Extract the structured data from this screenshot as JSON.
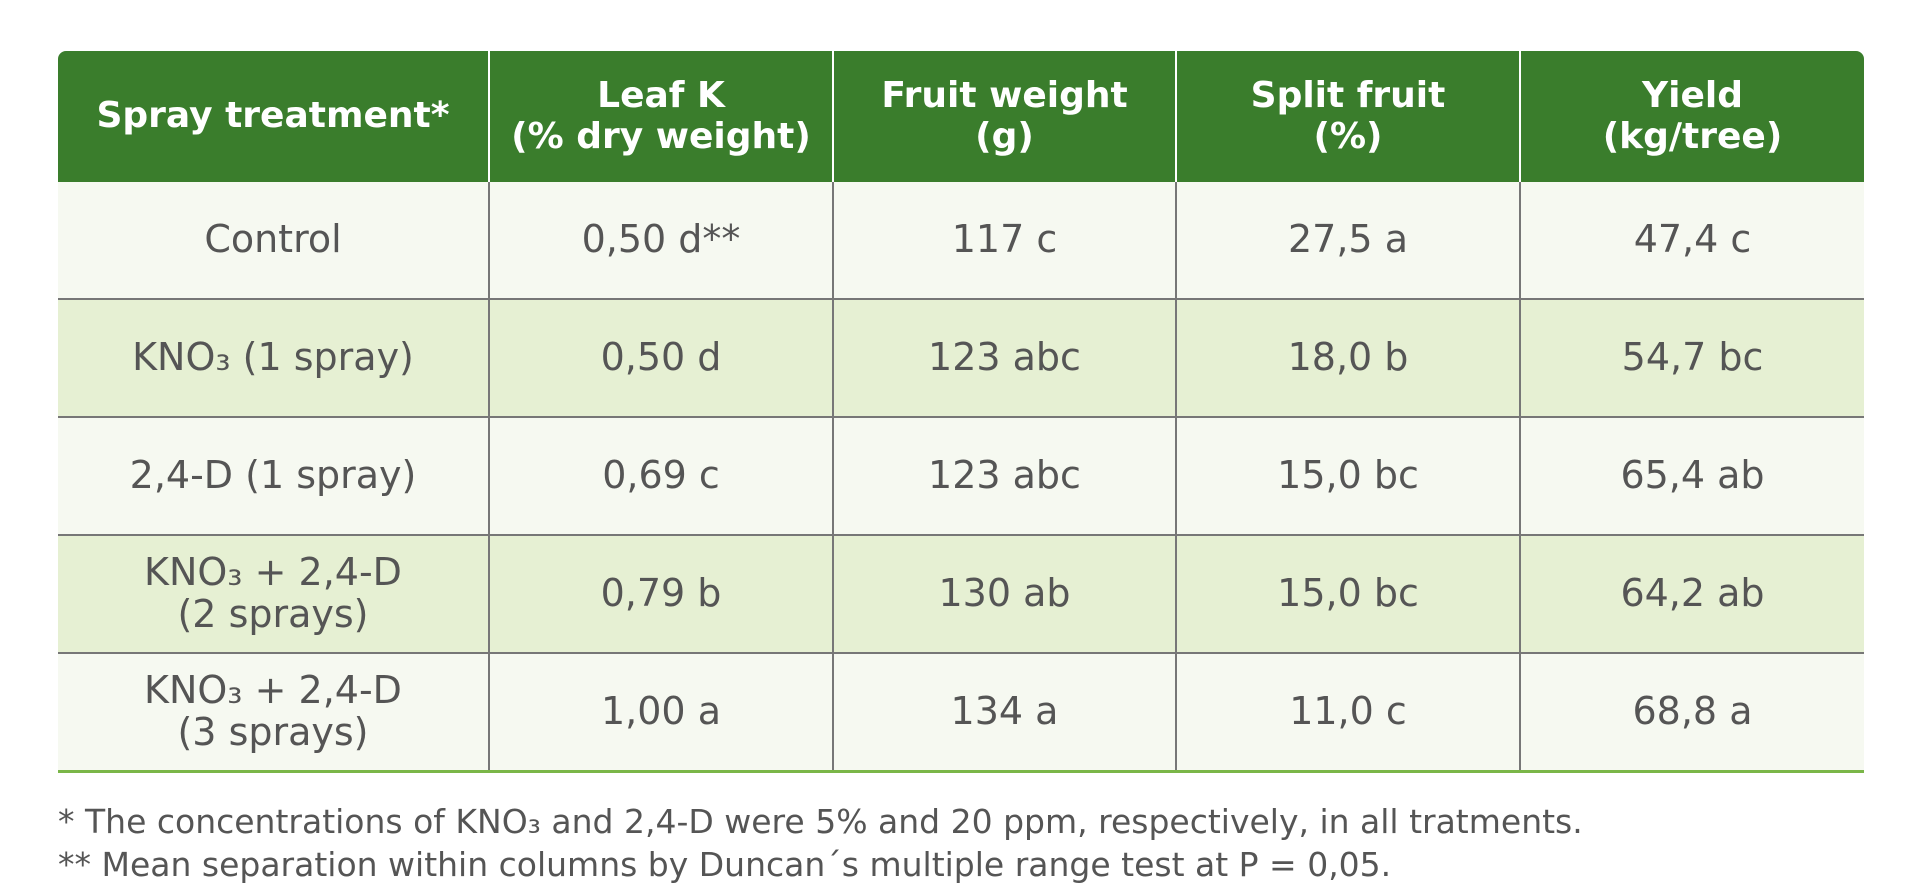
{
  "table": {
    "columns": [
      "Spray treatment*",
      "Leaf K\n(% dry weight)",
      "Fruit weight\n(g)",
      "Split fruit\n(%)",
      "Yield\n(kg/tree)"
    ],
    "rows": [
      [
        "Control",
        "0,50 d**",
        "117 c",
        "27,5 a",
        "47,4 c"
      ],
      [
        "KNO₃ (1 spray)",
        "0,50 d",
        "123 abc",
        "18,0 b",
        "54,7 bc"
      ],
      [
        "2,4-D (1 spray)",
        "0,69 c",
        "123 abc",
        "15,0 bc",
        "65,4 ab"
      ],
      [
        "KNO₃ + 2,4-D\n(2 sprays)",
        "0,79 b",
        "130 ab",
        "15,0 bc",
        "64,2 ab"
      ],
      [
        "KNO₃ + 2,4-D\n(3 sprays)",
        "1,00 a",
        "134 a",
        "11,0 c",
        "68,8 a"
      ]
    ]
  },
  "footnotes": [
    "* The concentrations of KNO₃ and 2,4-D were 5% and 20 ppm, respectively, in all tratments.",
    "** Mean separation within columns by Duncan´s multiple range test at P = 0,05."
  ]
}
